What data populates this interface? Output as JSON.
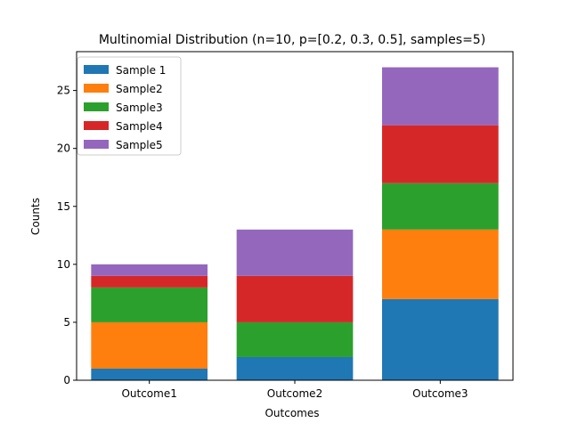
{
  "chart_data": {
    "type": "bar",
    "stacked": true,
    "title": "Multinomial Distribution (n=10, p=[0.2, 0.3, 0.5], samples=5)",
    "xlabel": "Outcomes",
    "ylabel": "Counts",
    "categories": [
      "Outcome1",
      "Outcome2",
      "Outcome3"
    ],
    "ylim": [
      0,
      28.35
    ],
    "yticks": [
      0,
      5,
      10,
      15,
      20,
      25
    ],
    "grid": false,
    "legend_position": "top-left",
    "series": [
      {
        "name": "Sample 1",
        "color": "#1f77b4",
        "values": [
          1,
          2,
          7
        ]
      },
      {
        "name": "Sample2",
        "color": "#ff7f0e",
        "values": [
          4,
          0,
          6
        ]
      },
      {
        "name": "Sample3",
        "color": "#2ca02c",
        "values": [
          3,
          3,
          4
        ]
      },
      {
        "name": "Sample4",
        "color": "#d62728",
        "values": [
          1,
          4,
          5
        ]
      },
      {
        "name": "Sample5",
        "color": "#9467bd",
        "values": [
          1,
          4,
          5
        ]
      }
    ]
  }
}
